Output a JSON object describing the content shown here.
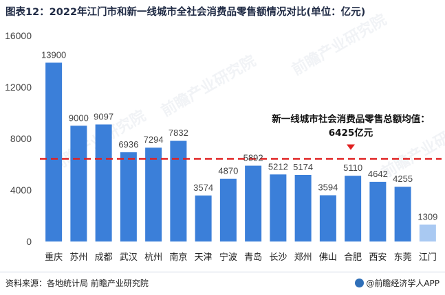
{
  "title": "图表12：2022年江门市和新一线城市全社会消费品零售额情况对比(单位：亿元)",
  "footer": {
    "source": "资料来源：各地统计局 前瞻产业研究院",
    "brand": "@前瞻经济学人APP"
  },
  "watermark": "前瞻产业研究院",
  "colors": {
    "bar": "#3b7fd9",
    "bar_highlight": "#a9c9f2",
    "avg_line": "#e02020",
    "grid_text": "#444444"
  },
  "chart_data": {
    "type": "bar",
    "title": "图表12：2022年江门市和新一线城市全社会消费品零售额情况对比(单位：亿元)",
    "categories": [
      "重庆",
      "苏州",
      "成都",
      "武汉",
      "杭州",
      "南京",
      "天津",
      "宁波",
      "青岛",
      "长沙",
      "郑州",
      "佛山",
      "合肥",
      "西安",
      "东莞",
      "江门"
    ],
    "values": [
      13900,
      9000,
      9097,
      6936,
      7294,
      7832,
      3574,
      4870,
      5892,
      5212,
      5174,
      3594,
      5110,
      4642,
      4255,
      1309
    ],
    "highlight_index": 15,
    "ylim": [
      0,
      16000
    ],
    "yticks": [
      0,
      4000,
      8000,
      12000,
      16000
    ],
    "average": {
      "value": 6425,
      "label_line1": "新一线城市社会消费品零售总额均值：",
      "label_line2": "6425亿元"
    },
    "grid": false
  }
}
